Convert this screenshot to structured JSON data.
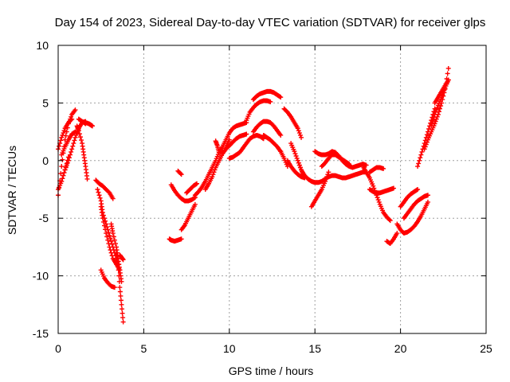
{
  "chart_data": {
    "type": "scatter",
    "title": "Day 154 of 2023, Sidereal Day-to-day VTEC variation (SDTVAR) for receiver glps",
    "xlabel": "GPS time / hours",
    "ylabel": "SDTVAR / TECUs",
    "xlim": [
      0,
      25
    ],
    "ylim": [
      -15,
      10
    ],
    "xticks": [
      0,
      5,
      10,
      15,
      20,
      25
    ],
    "yticks": [
      -15,
      -10,
      -5,
      0,
      5,
      10
    ],
    "x_tick_labels": [
      "0",
      "5",
      "10",
      "15",
      "20",
      "25"
    ],
    "y_tick_labels": [
      "-15",
      "-10",
      "-5",
      "0",
      "5",
      "10"
    ],
    "grid": true,
    "marker": "+",
    "series": [
      {
        "name": "SDTVAR",
        "color": "#ff0000",
        "tracks": [
          {
            "x": [
              0.0,
              0.2,
              0.4,
              0.6,
              0.8,
              1.0
            ],
            "y": [
              -3.0,
              -0.5,
              1.8,
              3.2,
              4.0,
              4.4
            ]
          },
          {
            "x": [
              0.0,
              0.2,
              0.4,
              0.6,
              0.8
            ],
            "y": [
              1.0,
              2.0,
              2.8,
              3.3,
              3.6
            ]
          },
          {
            "x": [
              0.0,
              0.2,
              0.4,
              0.6
            ],
            "y": [
              -2.5,
              -1.8,
              -0.8,
              0.3
            ]
          },
          {
            "x": [
              0.2,
              0.4,
              0.6,
              0.8,
              1.0
            ],
            "y": [
              0.5,
              1.2,
              1.8,
              2.3,
              2.5
            ]
          },
          {
            "x": [
              0.4,
              0.6,
              0.8,
              1.0,
              1.2,
              1.4,
              1.6
            ],
            "y": [
              -0.8,
              0.0,
              1.0,
              2.0,
              2.8,
              3.3,
              3.4
            ]
          },
          {
            "x": [
              1.2,
              1.4,
              1.6
            ],
            "y": [
              3.6,
              3.4,
              3.2
            ]
          },
          {
            "x": [
              1.1,
              1.2,
              1.4,
              1.5,
              1.6,
              1.7
            ],
            "y": [
              3.0,
              2.6,
              1.5,
              0.5,
              -0.5,
              -1.6
            ]
          },
          {
            "x": [
              1.6,
              1.8,
              1.9,
              2.0
            ],
            "y": [
              3.3,
              3.2,
              3.1,
              3.0
            ]
          },
          {
            "x": [
              2.2,
              2.4,
              2.6,
              2.8,
              3.0,
              3.2
            ],
            "y": [
              -1.7,
              -2.0,
              -2.2,
              -2.5,
              -2.8,
              -3.3
            ]
          },
          {
            "x": [
              2.3,
              2.5,
              2.6,
              2.8,
              3.0,
              3.2,
              3.4,
              3.6
            ],
            "y": [
              -2.5,
              -3.5,
              -4.5,
              -5.5,
              -6.5,
              -7.5,
              -8.5,
              -9.5
            ]
          },
          {
            "x": [
              2.5,
              2.6,
              2.8,
              3.0,
              3.2,
              3.4,
              3.6
            ],
            "y": [
              -4.0,
              -5.0,
              -6.3,
              -7.5,
              -8.5,
              -9.0,
              -9.5
            ]
          },
          {
            "x": [
              3.1,
              3.2,
              3.4,
              3.5,
              3.6,
              3.7
            ],
            "y": [
              -5.5,
              -6.3,
              -7.5,
              -8.5,
              -9.5,
              -10.5
            ]
          },
          {
            "x": [
              3.4,
              3.5,
              3.6,
              3.7,
              3.8
            ],
            "y": [
              -8.0,
              -9.0,
              -11.0,
              -12.5,
              -14.0
            ]
          },
          {
            "x": [
              3.6,
              3.7,
              3.8
            ],
            "y": [
              -8.2,
              -8.4,
              -8.6
            ]
          },
          {
            "x": [
              2.5,
              2.7,
              2.9,
              3.1,
              3.3
            ],
            "y": [
              -9.5,
              -10.2,
              -10.6,
              -10.9,
              -11.0
            ]
          },
          {
            "x": [
              6.5,
              6.6,
              6.8,
              7.0,
              7.2
            ],
            "y": [
              -6.8,
              -6.9,
              -7.0,
              -6.9,
              -6.8
            ]
          },
          {
            "x": [
              6.6,
              6.8,
              7.0,
              7.2,
              7.4,
              7.6,
              7.8,
              8.0
            ],
            "y": [
              -2.1,
              -2.6,
              -3.0,
              -3.3,
              -3.5,
              -3.5,
              -3.4,
              -3.2
            ]
          },
          {
            "x": [
              7.0,
              7.2
            ],
            "y": [
              -0.9,
              -1.2
            ]
          },
          {
            "x": [
              7.2,
              7.4,
              7.6,
              7.8,
              8.0
            ],
            "y": [
              -6.0,
              -5.6,
              -5.0,
              -4.4,
              -3.8
            ]
          },
          {
            "x": [
              7.5,
              7.7,
              7.9,
              8.1
            ],
            "y": [
              -2.8,
              -2.5,
              -2.2,
              -2.0
            ]
          },
          {
            "x": [
              8.0,
              8.2,
              8.4,
              8.6,
              8.8,
              9.0,
              9.2,
              9.4,
              9.6,
              9.8,
              10.0,
              10.2,
              10.4,
              10.6,
              10.8,
              11.0
            ],
            "y": [
              -3.0,
              -2.7,
              -2.3,
              -1.8,
              -1.2,
              -0.6,
              0.0,
              0.7,
              1.2,
              1.8,
              2.4,
              2.8,
              3.0,
              3.1,
              3.2,
              3.3
            ]
          },
          {
            "x": [
              8.6,
              8.8,
              9.0,
              9.2,
              9.4,
              9.6,
              9.8,
              10.0
            ],
            "y": [
              -2.5,
              -2.0,
              -1.4,
              -0.6,
              0.0,
              0.6,
              1.2,
              1.8
            ]
          },
          {
            "x": [
              9.6,
              9.8,
              10.0,
              10.2,
              10.4,
              10.6,
              10.8,
              11.0
            ],
            "y": [
              0.6,
              1.0,
              1.3,
              1.6,
              1.9,
              2.1,
              2.2,
              2.3
            ]
          },
          {
            "x": [
              9.2,
              9.3,
              9.4
            ],
            "y": [
              1.7,
              1.3,
              0.7
            ]
          },
          {
            "x": [
              10.0,
              10.2,
              10.4,
              10.6,
              10.8,
              11.0,
              11.2,
              11.4,
              11.6,
              11.8,
              12.0
            ],
            "y": [
              0.2,
              0.3,
              0.5,
              0.7,
              1.1,
              1.5,
              1.9,
              2.1,
              2.2,
              2.1,
              1.9
            ]
          },
          {
            "x": [
              11.0,
              11.2,
              11.4,
              11.6,
              11.8,
              12.0,
              12.2,
              12.4
            ],
            "y": [
              3.5,
              4.2,
              4.6,
              4.9,
              5.1,
              5.2,
              5.2,
              5.1
            ]
          },
          {
            "x": [
              11.4,
              11.6,
              11.8,
              12.0,
              12.2,
              12.4,
              12.6,
              12.8,
              13.0
            ],
            "y": [
              2.5,
              2.9,
              3.2,
              3.4,
              3.4,
              3.3,
              3.0,
              2.6,
              2.2
            ]
          },
          {
            "x": [
              12.0,
              12.2,
              12.4,
              12.6,
              12.8,
              13.0
            ],
            "y": [
              2.2,
              2.0,
              1.8,
              1.5,
              1.2,
              0.8
            ]
          },
          {
            "x": [
              11.4,
              11.6,
              11.8,
              12.0,
              12.2,
              12.4,
              12.6,
              12.8,
              13.0
            ],
            "y": [
              5.3,
              5.6,
              5.8,
              5.9,
              6.0,
              6.0,
              5.9,
              5.7,
              5.5
            ]
          },
          {
            "x": [
              13.0,
              13.2,
              13.4
            ],
            "y": [
              0.8,
              0.2,
              -0.5
            ]
          },
          {
            "x": [
              13.2,
              13.4,
              13.6,
              13.8,
              14.0,
              14.2
            ],
            "y": [
              4.5,
              4.2,
              3.8,
              3.3,
              2.8,
              2.0
            ]
          },
          {
            "x": [
              13.6,
              13.8,
              14.0,
              14.2,
              14.4
            ],
            "y": [
              1.5,
              0.8,
              0.0,
              -0.8,
              -1.5
            ]
          },
          {
            "x": [
              13.4,
              13.6,
              13.8,
              14.0,
              14.2,
              14.4
            ],
            "y": [
              0.0,
              -0.5,
              -0.9,
              -1.2,
              -1.4,
              -1.5
            ]
          },
          {
            "x": [
              14.0,
              14.2,
              14.4,
              14.6,
              14.8,
              15.0,
              15.2,
              15.4,
              15.6,
              15.8,
              16.0,
              16.2,
              16.4,
              16.6,
              16.8,
              17.0,
              17.2,
              17.4,
              17.6,
              17.8,
              18.0
            ],
            "y": [
              0.0,
              -0.8,
              -1.3,
              -1.6,
              -1.8,
              -1.9,
              -1.9,
              -1.8,
              -1.6,
              -1.4,
              -1.3,
              -1.3,
              -1.4,
              -1.5,
              -1.5,
              -1.4,
              -1.3,
              -1.2,
              -1.1,
              -1.0,
              -1.0
            ]
          },
          {
            "x": [
              14.8,
              15.0,
              15.2,
              15.4,
              15.6,
              15.8
            ],
            "y": [
              -4.0,
              -3.5,
              -3.0,
              -2.5,
              -1.8,
              -1.0
            ]
          },
          {
            "x": [
              15.0,
              15.2,
              15.4,
              15.6,
              15.8,
              16.0,
              16.2,
              16.4,
              16.6,
              16.8,
              17.0,
              17.2,
              17.4,
              17.6,
              17.8,
              18.0
            ],
            "y": [
              0.8,
              0.6,
              0.5,
              0.5,
              0.6,
              0.8,
              0.7,
              0.4,
              0.0,
              -0.3,
              -0.5,
              -0.6,
              -0.5,
              -0.4,
              -0.3,
              -0.4
            ]
          },
          {
            "x": [
              15.4,
              15.6,
              15.8,
              16.0,
              16.2,
              16.4,
              16.6,
              16.8,
              17.0
            ],
            "y": [
              -0.5,
              -0.2,
              0.2,
              0.5,
              0.5,
              0.3,
              0.1,
              -0.1,
              -0.3
            ]
          },
          {
            "x": [
              17.8,
              18.0,
              18.2,
              18.4,
              18.6,
              18.8,
              19.0,
              19.2,
              19.4
            ],
            "y": [
              -0.5,
              -1.0,
              -1.5,
              -2.2,
              -3.0,
              -3.8,
              -4.5,
              -4.9,
              -5.2
            ]
          },
          {
            "x": [
              18.2,
              18.4,
              18.6,
              18.8,
              19.0,
              19.2,
              19.4,
              19.6
            ],
            "y": [
              -2.5,
              -2.7,
              -2.8,
              -2.8,
              -2.7,
              -2.6,
              -2.5,
              -2.4
            ]
          },
          {
            "x": [
              18.2,
              18.4,
              18.6,
              18.8,
              19.0
            ],
            "y": [
              -1.0,
              -0.8,
              -0.6,
              -0.6,
              -0.7
            ]
          },
          {
            "x": [
              19.2,
              19.4,
              19.6,
              19.8
            ],
            "y": [
              -7.0,
              -7.2,
              -6.8,
              -6.3
            ]
          },
          {
            "x": [
              19.8,
              20.0,
              20.2,
              20.4,
              20.6,
              20.8,
              21.0,
              21.2,
              21.4,
              21.6
            ],
            "y": [
              -5.5,
              -6.0,
              -6.3,
              -6.2,
              -6.0,
              -5.7,
              -5.3,
              -4.8,
              -4.2,
              -3.6
            ]
          },
          {
            "x": [
              20.0,
              20.2,
              20.4,
              20.6,
              20.8,
              21.0
            ],
            "y": [
              -4.0,
              -3.6,
              -3.2,
              -2.9,
              -2.7,
              -2.5
            ]
          },
          {
            "x": [
              20.2,
              20.4,
              20.6,
              20.8,
              21.0,
              21.2,
              21.4,
              21.6
            ],
            "y": [
              -5.0,
              -4.6,
              -4.2,
              -3.8,
              -3.5,
              -3.3,
              -3.1,
              -3.0
            ]
          },
          {
            "x": [
              21.0,
              21.2,
              21.4,
              21.6,
              21.8,
              22.0
            ],
            "y": [
              -0.5,
              0.5,
              1.5,
              2.5,
              3.5,
              4.5
            ]
          },
          {
            "x": [
              21.4,
              21.6,
              21.8,
              22.0,
              22.2,
              22.4,
              22.6,
              22.8
            ],
            "y": [
              1.0,
              1.8,
              2.5,
              3.2,
              4.0,
              5.0,
              6.2,
              8.0
            ]
          },
          {
            "x": [
              21.8,
              22.0,
              22.2,
              22.4,
              22.6,
              22.8
            ],
            "y": [
              3.0,
              4.0,
              4.8,
              5.5,
              6.3,
              7.0
            ]
          },
          {
            "x": [
              22.0,
              22.2,
              22.4,
              22.6,
              22.8
            ],
            "y": [
              5.0,
              5.5,
              6.0,
              6.5,
              7.0
            ]
          }
        ]
      }
    ]
  }
}
